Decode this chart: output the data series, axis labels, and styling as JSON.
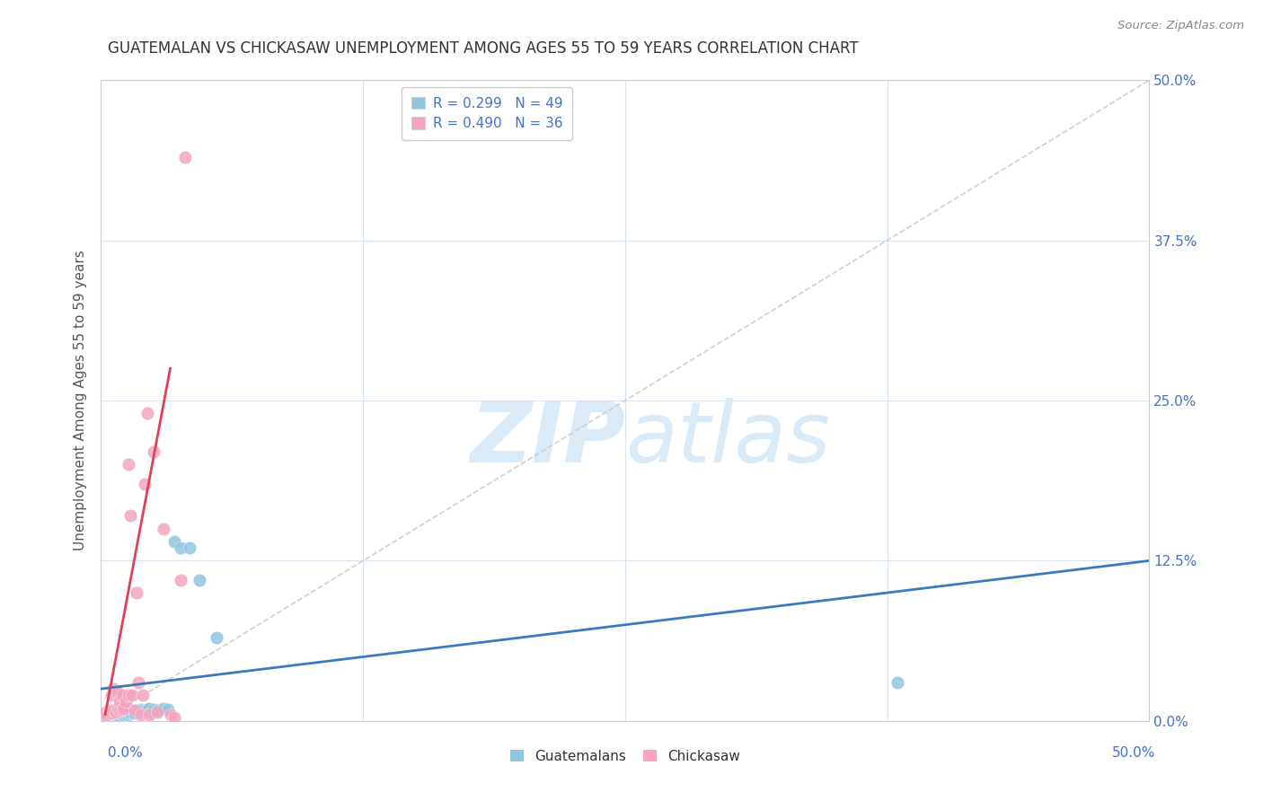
{
  "title": "GUATEMALAN VS CHICKASAW UNEMPLOYMENT AMONG AGES 55 TO 59 YEARS CORRELATION CHART",
  "source": "Source: ZipAtlas.com",
  "ylabel": "Unemployment Among Ages 55 to 59 years",
  "yticks": [
    0.0,
    0.125,
    0.25,
    0.375,
    0.5
  ],
  "ytick_labels": [
    "0.0%",
    "12.5%",
    "25.0%",
    "37.5%",
    "50.0%"
  ],
  "xticks": [
    0.0,
    0.125,
    0.25,
    0.375,
    0.5
  ],
  "xlim": [
    0.0,
    0.5
  ],
  "ylim": [
    0.0,
    0.5
  ],
  "legend_blue_label": "Guatemalans",
  "legend_pink_label": "Chickasaw",
  "legend_blue_R": "R = 0.299",
  "legend_blue_N": "N = 49",
  "legend_pink_R": "R = 0.490",
  "legend_pink_N": "N = 36",
  "blue_color": "#92c5de",
  "pink_color": "#f4a6c0",
  "blue_line_color": "#3a7bbf",
  "pink_line_color": "#e0405a",
  "diagonal_color": "#c8c8c8",
  "background_color": "#ffffff",
  "watermark_zip": "ZIP",
  "watermark_atlas": "atlas",
  "watermark_color": "#daeaf7",
  "blue_scatter_x": [
    0.002,
    0.003,
    0.004,
    0.004,
    0.005,
    0.005,
    0.005,
    0.006,
    0.006,
    0.006,
    0.007,
    0.007,
    0.007,
    0.008,
    0.008,
    0.008,
    0.009,
    0.009,
    0.009,
    0.01,
    0.01,
    0.01,
    0.011,
    0.011,
    0.012,
    0.012,
    0.013,
    0.013,
    0.014,
    0.014,
    0.015,
    0.016,
    0.017,
    0.018,
    0.019,
    0.02,
    0.022,
    0.023,
    0.024,
    0.025,
    0.027,
    0.03,
    0.032,
    0.035,
    0.038,
    0.042,
    0.047,
    0.055,
    0.38
  ],
  "blue_scatter_y": [
    0.005,
    0.003,
    0.004,
    0.007,
    0.003,
    0.005,
    0.006,
    0.004,
    0.006,
    0.007,
    0.004,
    0.005,
    0.007,
    0.005,
    0.006,
    0.008,
    0.004,
    0.006,
    0.007,
    0.005,
    0.006,
    0.008,
    0.005,
    0.007,
    0.006,
    0.008,
    0.005,
    0.007,
    0.006,
    0.009,
    0.007,
    0.006,
    0.008,
    0.007,
    0.009,
    0.008,
    0.009,
    0.01,
    0.007,
    0.009,
    0.008,
    0.01,
    0.009,
    0.14,
    0.135,
    0.135,
    0.11,
    0.065,
    0.03
  ],
  "pink_scatter_x": [
    0.002,
    0.003,
    0.004,
    0.005,
    0.005,
    0.006,
    0.006,
    0.007,
    0.007,
    0.008,
    0.008,
    0.009,
    0.009,
    0.01,
    0.01,
    0.011,
    0.012,
    0.013,
    0.013,
    0.014,
    0.015,
    0.016,
    0.017,
    0.018,
    0.019,
    0.02,
    0.021,
    0.022,
    0.023,
    0.025,
    0.027,
    0.03,
    0.033,
    0.035,
    0.038,
    0.04
  ],
  "pink_scatter_y": [
    0.007,
    0.005,
    0.008,
    0.006,
    0.02,
    0.008,
    0.025,
    0.007,
    0.023,
    0.01,
    0.022,
    0.008,
    0.015,
    0.009,
    0.02,
    0.01,
    0.015,
    0.02,
    0.2,
    0.16,
    0.02,
    0.008,
    0.1,
    0.03,
    0.005,
    0.02,
    0.185,
    0.24,
    0.005,
    0.21,
    0.007,
    0.15,
    0.005,
    0.003,
    0.11,
    0.44
  ],
  "blue_trend_x": [
    0.0,
    0.5
  ],
  "blue_trend_y": [
    0.025,
    0.125
  ],
  "pink_trend_x": [
    0.002,
    0.033
  ],
  "pink_trend_y": [
    0.005,
    0.275
  ]
}
